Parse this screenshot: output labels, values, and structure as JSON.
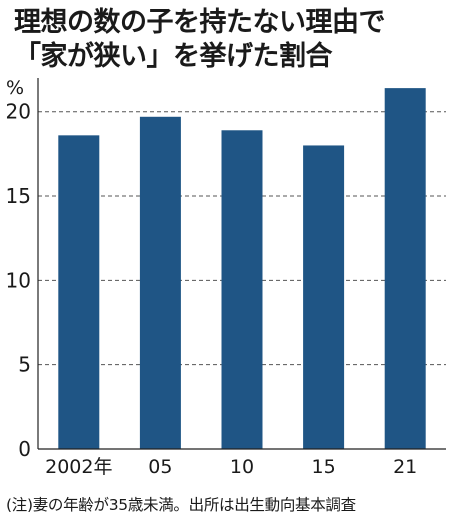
{
  "title_lines": [
    "理想の数の子を持たない理由で",
    "「家が狭い」を挙げた割合"
  ],
  "footnote": "(注)妻の年齢が35歳未満。出所は出生動向基本調査",
  "chart_data": {
    "type": "bar",
    "title": "理想の数の子を持たない理由で「家が狭い」を挙げた割合",
    "unit": "%",
    "categories": [
      "2002年",
      "05",
      "10",
      "15",
      "21"
    ],
    "values": [
      18.6,
      19.7,
      18.9,
      18.0,
      21.4
    ],
    "ylim": [
      0,
      22
    ],
    "yticks": [
      0,
      5,
      10,
      15,
      20
    ],
    "grid": true,
    "bar_color": "#1f5585"
  }
}
